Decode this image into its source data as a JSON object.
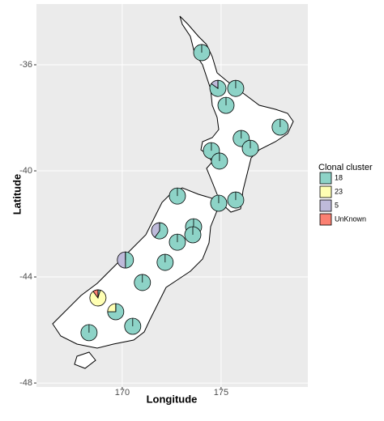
{
  "chart_data": {
    "type": "pie-map",
    "x_label": "Longitude",
    "y_label": "Latitude",
    "xlim": [
      165.66,
      179.39
    ],
    "ylim": [
      -48.15,
      -33.71
    ],
    "xticks": [
      170,
      175
    ],
    "yticks": [
      -36,
      -40,
      -44,
      -48
    ],
    "grid": true,
    "legend_title": "Clonal cluster",
    "series": [
      {
        "name": "18",
        "color": "#8dd3c7"
      },
      {
        "name": "23",
        "color": "#ffffb3"
      },
      {
        "name": "5",
        "color": "#bebada"
      },
      {
        "name": "UnKnown",
        "color": "#fb8072"
      }
    ],
    "pies": [
      {
        "x": 174.02,
        "y": -35.54,
        "values": [
          100,
          0,
          0,
          0
        ]
      },
      {
        "x": 174.84,
        "y": -36.89,
        "values": [
          85,
          0,
          15,
          0
        ]
      },
      {
        "x": 175.74,
        "y": -36.89,
        "values": [
          100,
          0,
          0,
          0
        ]
      },
      {
        "x": 175.25,
        "y": -37.53,
        "values": [
          100,
          0,
          0,
          0
        ]
      },
      {
        "x": 177.99,
        "y": -38.35,
        "values": [
          100,
          0,
          0,
          0
        ]
      },
      {
        "x": 176.02,
        "y": -38.78,
        "values": [
          100,
          0,
          0,
          0
        ]
      },
      {
        "x": 176.48,
        "y": -39.15,
        "values": [
          100,
          0,
          0,
          0
        ]
      },
      {
        "x": 174.51,
        "y": -39.24,
        "values": [
          100,
          0,
          0,
          0
        ]
      },
      {
        "x": 174.92,
        "y": -39.63,
        "values": [
          100,
          0,
          0,
          0
        ]
      },
      {
        "x": 172.79,
        "y": -40.95,
        "values": [
          100,
          0,
          0,
          0
        ]
      },
      {
        "x": 174.88,
        "y": -41.22,
        "values": [
          100,
          0,
          0,
          0
        ]
      },
      {
        "x": 175.74,
        "y": -41.1,
        "values": [
          100,
          0,
          0,
          0
        ]
      },
      {
        "x": 173.61,
        "y": -42.11,
        "values": [
          100,
          0,
          0,
          0
        ]
      },
      {
        "x": 171.89,
        "y": -42.26,
        "values": [
          60,
          0,
          40,
          0
        ]
      },
      {
        "x": 173.57,
        "y": -42.41,
        "values": [
          100,
          0,
          0,
          0
        ]
      },
      {
        "x": 172.79,
        "y": -42.69,
        "values": [
          100,
          0,
          0,
          0
        ]
      },
      {
        "x": 170.16,
        "y": -43.36,
        "values": [
          50,
          0,
          50,
          0
        ]
      },
      {
        "x": 172.17,
        "y": -43.45,
        "values": [
          100,
          0,
          0,
          0
        ]
      },
      {
        "x": 171.02,
        "y": -44.21,
        "values": [
          100,
          0,
          0,
          0
        ]
      },
      {
        "x": 168.77,
        "y": -44.79,
        "values": [
          5,
          85,
          0,
          10
        ]
      },
      {
        "x": 169.67,
        "y": -45.31,
        "values": [
          75,
          25,
          0,
          0
        ]
      },
      {
        "x": 170.53,
        "y": -45.86,
        "values": [
          100,
          0,
          0,
          0
        ]
      },
      {
        "x": 168.32,
        "y": -46.1,
        "values": [
          100,
          0,
          0,
          0
        ]
      }
    ]
  }
}
